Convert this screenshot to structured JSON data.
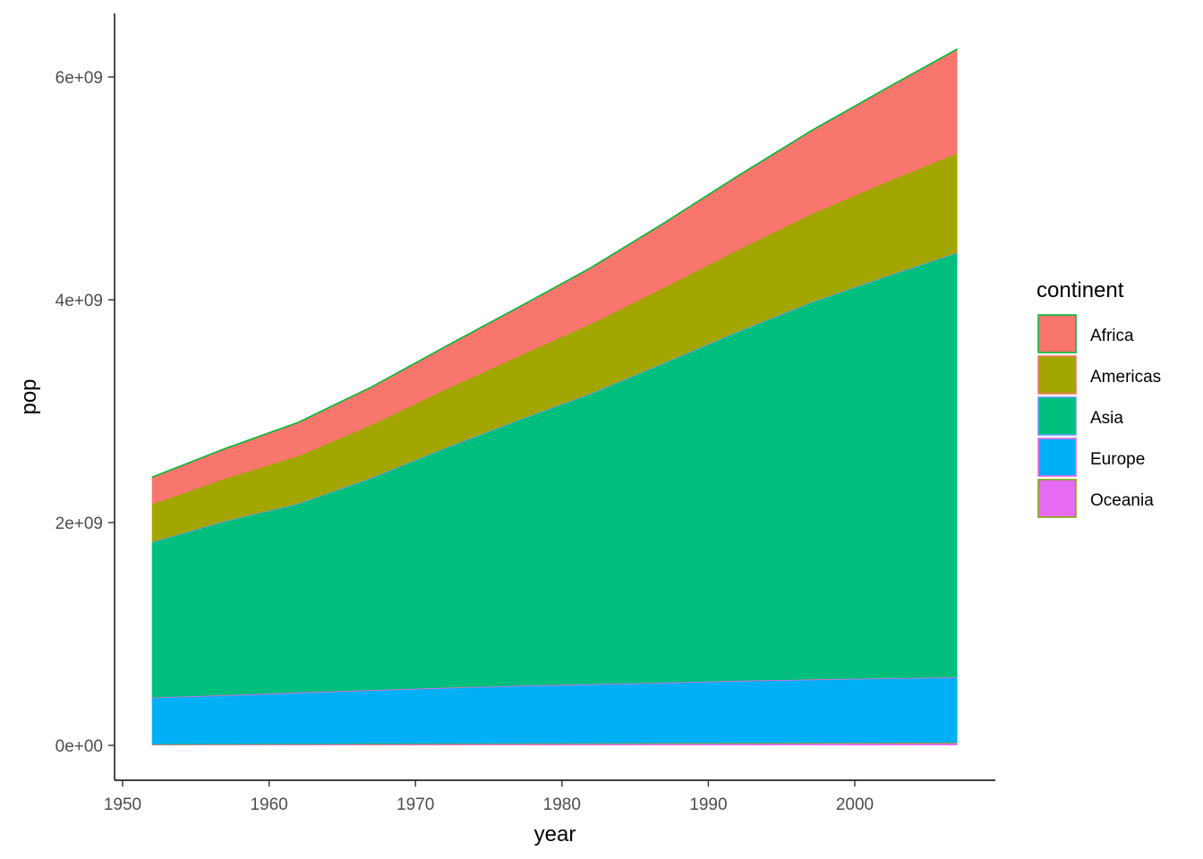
{
  "chart_data": {
    "type": "area",
    "stacked": true,
    "xlabel": "year",
    "ylabel": "pop",
    "xlim": [
      1950,
      2010
    ],
    "ylim": [
      -300000000,
      6500000000
    ],
    "x_ticks": [
      1950,
      1960,
      1970,
      1980,
      1990,
      2000
    ],
    "x_tick_labels": [
      "1950",
      "1960",
      "1970",
      "1980",
      "1990",
      "2000"
    ],
    "y_ticks": [
      0,
      2000000000,
      4000000000,
      6000000000
    ],
    "y_tick_labels": [
      "0e+00",
      "2e+09",
      "4e+09",
      "6e+09"
    ],
    "grid": false,
    "legend": {
      "title": "continent",
      "position": "right"
    },
    "x": [
      1952,
      1957,
      1962,
      1967,
      1972,
      1977,
      1982,
      1987,
      1992,
      1997,
      2002,
      2007
    ],
    "series": [
      {
        "name": "Africa",
        "fill": "#F8766D",
        "stroke": "#00BA38",
        "values": [
          237640501,
          264837738,
          296516865,
          335289489,
          379879541,
          433061021,
          499348587,
          574834110,
          659081517,
          743832984,
          833723916,
          929539692
        ]
      },
      {
        "name": "Americas",
        "fill": "#A3A500",
        "stroke": "#F8766D",
        "values": [
          345152446,
          386953916,
          433270254,
          480746623,
          529384210,
          578067699,
          630290920,
          682753971,
          739274104,
          796900410,
          849772762,
          898871184
        ]
      },
      {
        "name": "Asia",
        "fill": "#00BF7D",
        "stroke": "#619CFF",
        "values": [
          1395357351,
          1562780599,
          1696357182,
          1905662900,
          2150972248,
          2384513556,
          2610135582,
          2871220762,
          3133292191,
          3383285500,
          3601802203,
          3811953827
        ]
      },
      {
        "name": "Europe",
        "fill": "#00B0F6",
        "stroke": "#F564E3",
        "values": [
          418120846,
          437890351,
          460355155,
          481178958,
          500635059,
          517164531,
          531266901,
          543094160,
          558142797,
          568944148,
          578223869,
          586098529
        ]
      },
      {
        "name": "Oceania",
        "fill": "#E76BF3",
        "stroke": "#7CAE00",
        "values": [
          10686006,
          11941976,
          13283518,
          14600414,
          16106125,
          17239000,
          18394850,
          19574415,
          20919651,
          22241430,
          23454829,
          24549947
        ]
      }
    ]
  }
}
